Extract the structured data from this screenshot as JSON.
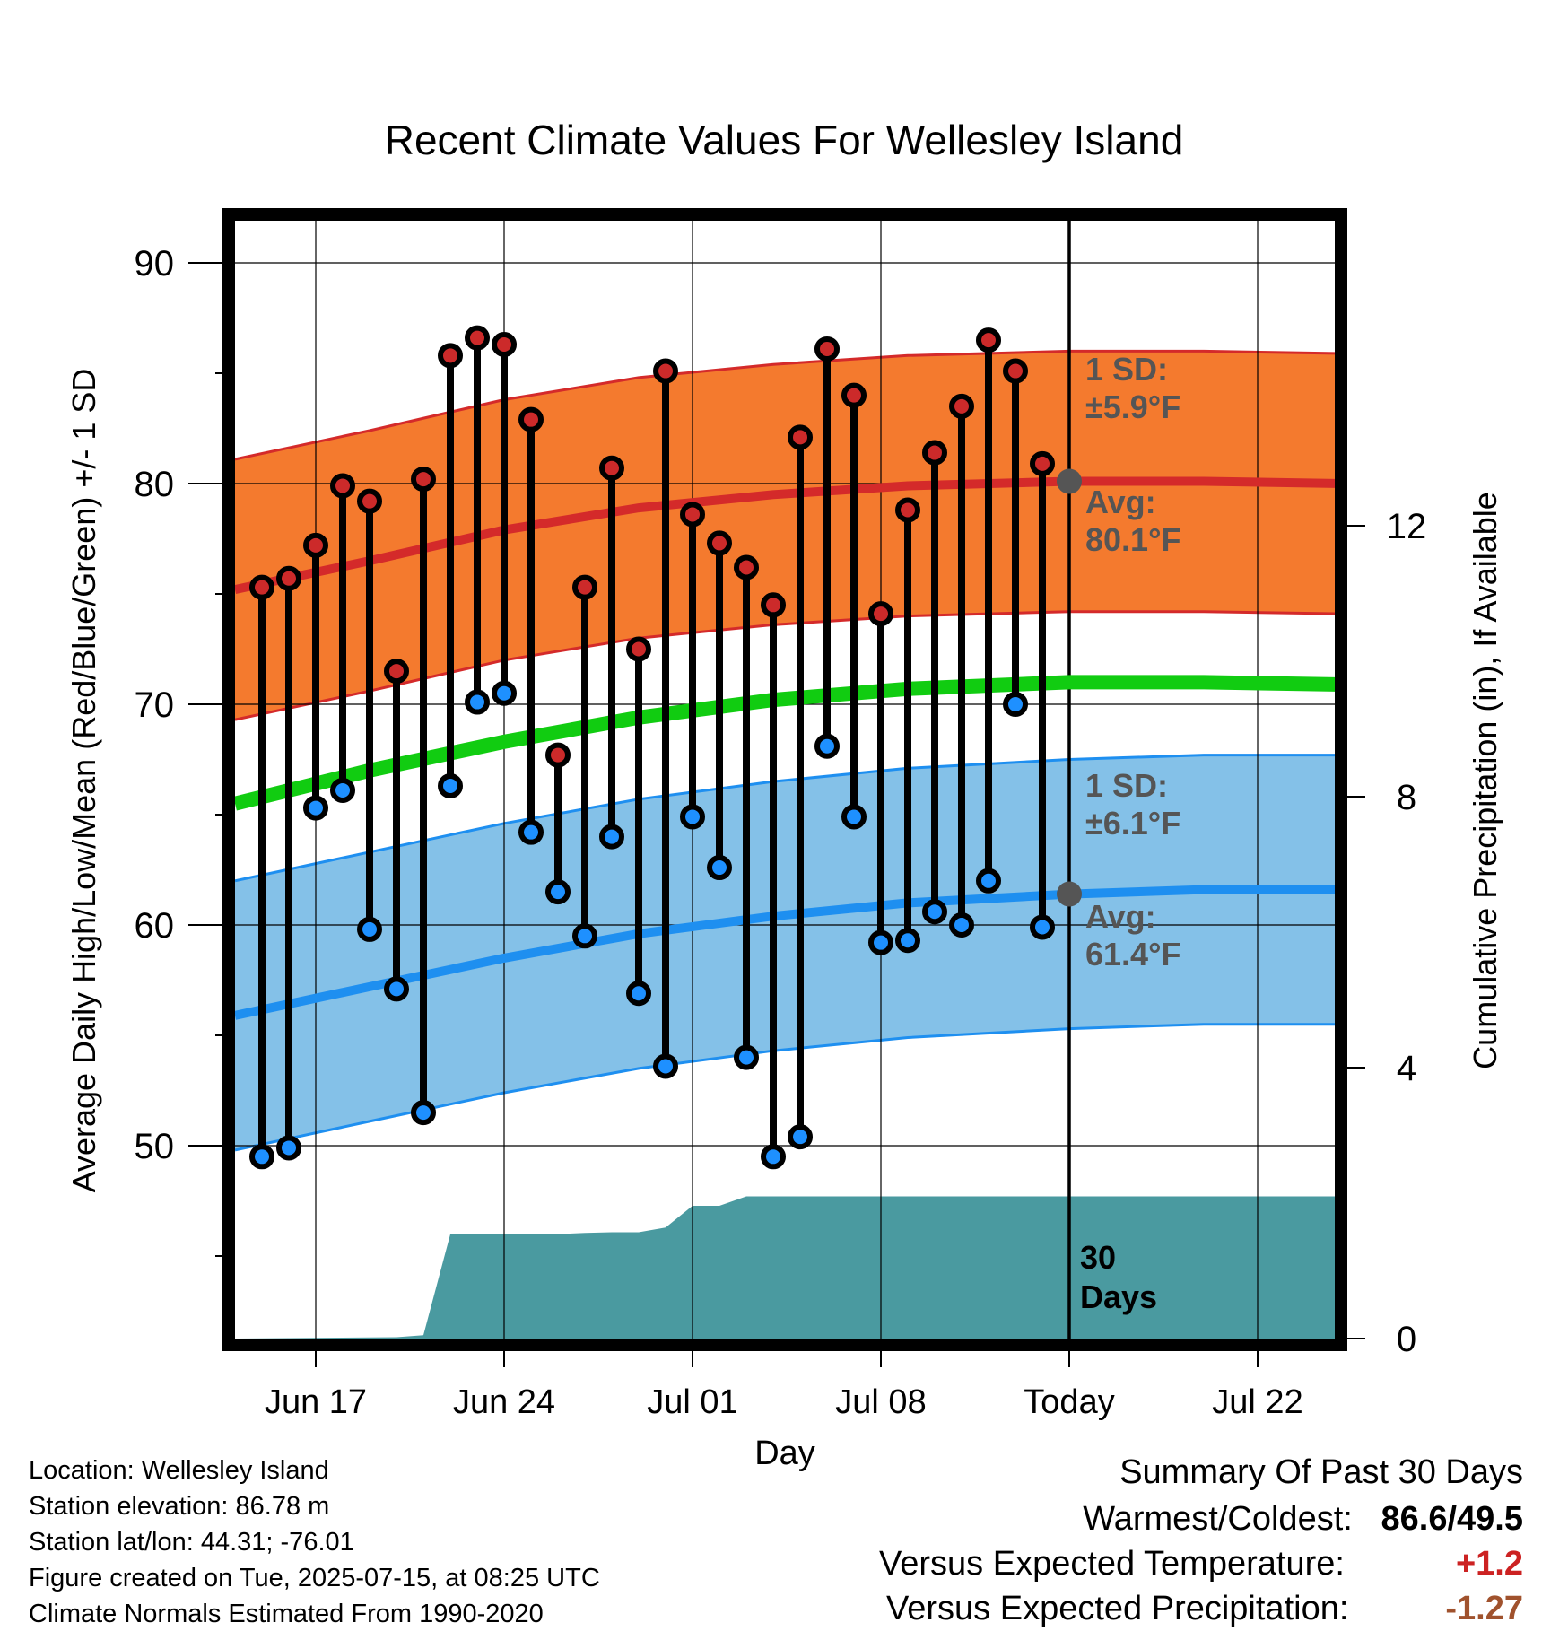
{
  "title": "Recent Climate Values For Wellesley Island",
  "chart_data": {
    "type": "line",
    "title": "Recent Climate Values For Wellesley Island",
    "xlabel": "Day",
    "ylabel": "Average Daily High/Low/Mean (Red/Blue/Green) +/- 1 SD",
    "y2label": "Cumulative Precipitation (in), If Available",
    "ylim": [
      41,
      92
    ],
    "y2lim": [
      0,
      14
    ],
    "xlim": [
      "2025-06-14",
      "2025-07-25"
    ],
    "yticks": [
      50,
      60,
      70,
      80,
      90
    ],
    "y2ticks": [
      0,
      4,
      8,
      12
    ],
    "x_ticks": [
      {
        "date": "2025-06-17",
        "label": "Jun 17"
      },
      {
        "date": "2025-06-24",
        "label": "Jun 24"
      },
      {
        "date": "2025-07-01",
        "label": "Jul 01"
      },
      {
        "date": "2025-07-08",
        "label": "Jul 08"
      },
      {
        "date": "2025-07-15",
        "label": "Today"
      },
      {
        "date": "2025-07-22",
        "label": "Jul 22"
      }
    ],
    "grid": true,
    "today": "2025-07-15",
    "daily": {
      "dates": [
        "2025-06-15",
        "2025-06-16",
        "2025-06-17",
        "2025-06-18",
        "2025-06-19",
        "2025-06-20",
        "2025-06-21",
        "2025-06-22",
        "2025-06-23",
        "2025-06-24",
        "2025-06-25",
        "2025-06-26",
        "2025-06-27",
        "2025-06-28",
        "2025-06-29",
        "2025-06-30",
        "2025-07-01",
        "2025-07-02",
        "2025-07-03",
        "2025-07-04",
        "2025-07-05",
        "2025-07-06",
        "2025-07-07",
        "2025-07-08",
        "2025-07-09",
        "2025-07-10",
        "2025-07-11",
        "2025-07-12",
        "2025-07-13",
        "2025-07-14"
      ],
      "highs": [
        75.3,
        75.7,
        77.2,
        79.9,
        79.2,
        71.5,
        80.2,
        85.8,
        86.6,
        86.3,
        82.9,
        67.7,
        75.3,
        80.7,
        72.5,
        85.1,
        78.6,
        77.3,
        76.2,
        74.5,
        82.1,
        86.1,
        84.0,
        74.1,
        78.8,
        81.4,
        83.5,
        86.5,
        85.1,
        80.9
      ],
      "lows": [
        49.5,
        49.9,
        65.3,
        66.1,
        59.8,
        57.1,
        51.5,
        66.3,
        70.1,
        70.5,
        64.2,
        61.5,
        59.5,
        64.0,
        56.9,
        53.6,
        64.9,
        62.6,
        54.0,
        49.5,
        50.4,
        68.1,
        64.9,
        59.2,
        59.3,
        60.6,
        60.0,
        62.0,
        70.0,
        59.9
      ]
    },
    "normals": {
      "dates": [
        "2025-06-14",
        "2025-06-19",
        "2025-06-24",
        "2025-06-29",
        "2025-07-04",
        "2025-07-09",
        "2025-07-15",
        "2025-07-20",
        "2025-07-25"
      ],
      "avg_high": [
        75.2,
        76.5,
        77.9,
        78.9,
        79.5,
        79.9,
        80.1,
        80.1,
        80.0
      ],
      "avg_low": [
        55.9,
        57.2,
        58.5,
        59.6,
        60.4,
        61.0,
        61.4,
        61.6,
        61.6
      ],
      "avg_mean": [
        65.5,
        67.0,
        68.3,
        69.4,
        70.2,
        70.7,
        71.0,
        71.0,
        70.9
      ],
      "high_sd": 5.9,
      "low_sd": 6.1
    },
    "precip_cumulative": {
      "dates": [
        "2025-06-14",
        "2025-06-20",
        "2025-06-21",
        "2025-06-22",
        "2025-06-23",
        "2025-06-24",
        "2025-06-25",
        "2025-06-26",
        "2025-06-27",
        "2025-06-28",
        "2025-06-29",
        "2025-06-30",
        "2025-07-01",
        "2025-07-02",
        "2025-07-03",
        "2025-07-04",
        "2025-07-15",
        "2025-07-25"
      ],
      "values": [
        0,
        0.02,
        0.05,
        1.54,
        1.54,
        1.54,
        1.54,
        1.54,
        1.56,
        1.57,
        1.57,
        1.64,
        1.96,
        1.96,
        2.1,
        2.1,
        2.1,
        2.1
      ]
    },
    "annotations": {
      "high_sd_line1": "1 SD:",
      "high_sd_line2": "±5.9°F",
      "high_avg_line1": "Avg:",
      "high_avg_line2": "80.1°F",
      "low_sd_line1": "1 SD:",
      "low_sd_line2": "±6.1°F",
      "low_avg_line1": "Avg:",
      "low_avg_line2": "61.4°F",
      "days_line1": "30",
      "days_line2": "Days"
    },
    "colors": {
      "high_band": "#f47a2e",
      "high_line": "#d42a2a",
      "low_band": "#84c1e8",
      "low_line": "#1e8ff0",
      "mean_line": "#11cc11",
      "precip": "#4a9aa0",
      "high_marker": "#cc2a2a",
      "low_marker": "#1e90ff",
      "annotation_text": "#555555",
      "avg_marker": "#555555"
    }
  },
  "info": {
    "location": "Location: Wellesley Island",
    "elevation": "Station elevation: 86.78 m",
    "latlon": "Station lat/lon: 44.31; -76.01",
    "created": "Figure created on Tue, 2025-07-15, at 08:25 UTC",
    "normals": "Climate Normals Estimated From 1990-2020"
  },
  "summary": {
    "title": "Summary Of Past 30 Days",
    "warm_cold_label": "Warmest/Coldest:",
    "warm_cold_value": "86.6/49.5",
    "temp_label": "Versus Expected Temperature:",
    "temp_value": "+1.2",
    "temp_color": "#cc2222",
    "precip_label": "Versus Expected Precipitation:",
    "precip_value": "-1.27",
    "precip_color": "#a0522d"
  }
}
